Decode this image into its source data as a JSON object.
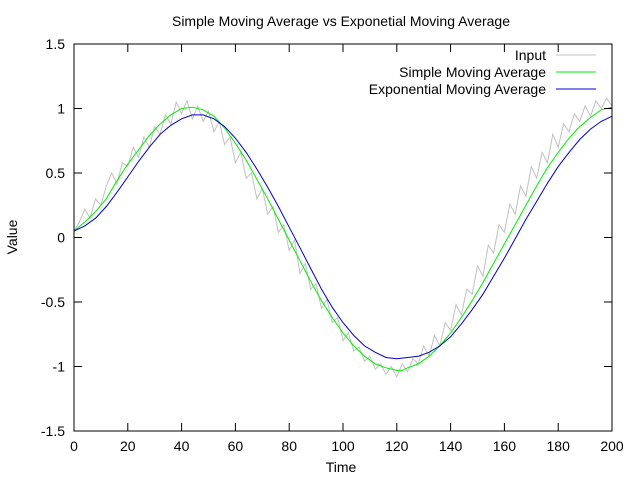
{
  "chart_data": {
    "type": "line",
    "title": "Simple Moving Average vs Exponetial Moving Average",
    "xlabel": "Time",
    "ylabel": "Value",
    "xlim": [
      0,
      200
    ],
    "ylim": [
      -1.5,
      1.5
    ],
    "xticks": [
      0,
      20,
      40,
      60,
      80,
      100,
      120,
      140,
      160,
      180,
      200
    ],
    "yticks": [
      -1.5,
      -1,
      -0.5,
      0,
      0.5,
      1,
      1.5
    ],
    "xtick_labels": [
      "0",
      "20",
      "40",
      "60",
      "80",
      "100",
      "120",
      "140",
      "160",
      "180",
      "200"
    ],
    "ytick_labels": [
      "-1.5",
      "-1",
      "-0.5",
      "0",
      "0.5",
      "1",
      "1.5"
    ],
    "grid": false,
    "legend_position": "top-right",
    "series": [
      {
        "name": "Input",
        "color": "#c0c0c0",
        "x": [
          0,
          2,
          4,
          6,
          8,
          10,
          12,
          14,
          16,
          18,
          20,
          22,
          24,
          26,
          28,
          30,
          32,
          34,
          36,
          38,
          40,
          42,
          44,
          46,
          48,
          50,
          52,
          54,
          56,
          58,
          60,
          62,
          64,
          66,
          68,
          70,
          72,
          74,
          76,
          78,
          80,
          82,
          84,
          86,
          88,
          90,
          92,
          94,
          96,
          98,
          100,
          102,
          104,
          106,
          108,
          110,
          112,
          114,
          116,
          118,
          120,
          122,
          124,
          126,
          128,
          130,
          132,
          134,
          136,
          138,
          140,
          142,
          144,
          146,
          148,
          150,
          152,
          154,
          156,
          158,
          160,
          162,
          164,
          166,
          168,
          170,
          172,
          174,
          176,
          178,
          180,
          182,
          184,
          186,
          188,
          190,
          192,
          194,
          196,
          198,
          200
        ],
        "y": [
          0.05,
          0.12,
          0.22,
          0.15,
          0.3,
          0.25,
          0.4,
          0.5,
          0.42,
          0.58,
          0.55,
          0.7,
          0.62,
          0.78,
          0.7,
          0.86,
          0.8,
          0.95,
          0.88,
          1.05,
          0.96,
          1.06,
          0.92,
          1.02,
          0.9,
          0.98,
          0.82,
          0.9,
          0.72,
          0.78,
          0.58,
          0.66,
          0.46,
          0.5,
          0.3,
          0.38,
          0.18,
          0.24,
          0.04,
          0.1,
          -0.1,
          -0.02,
          -0.28,
          -0.2,
          -0.4,
          -0.36,
          -0.55,
          -0.48,
          -0.66,
          -0.62,
          -0.8,
          -0.74,
          -0.88,
          -0.85,
          -0.96,
          -0.92,
          -1.02,
          -0.98,
          -1.06,
          -1.0,
          -1.08,
          -0.98,
          -1.04,
          -0.94,
          -0.98,
          -0.84,
          -0.92,
          -0.76,
          -0.84,
          -0.66,
          -0.72,
          -0.52,
          -0.6,
          -0.4,
          -0.44,
          -0.22,
          -0.3,
          -0.06,
          -0.12,
          0.1,
          0.04,
          0.26,
          0.18,
          0.4,
          0.32,
          0.55,
          0.46,
          0.66,
          0.58,
          0.8,
          0.7,
          0.88,
          0.82,
          0.96,
          0.9,
          1.02,
          0.94,
          1.06,
          1.0,
          1.08,
          1.02
        ]
      },
      {
        "name": "Simple Moving Average",
        "color": "#00ee00",
        "x": [
          0,
          4,
          8,
          12,
          16,
          20,
          24,
          28,
          32,
          36,
          40,
          44,
          48,
          52,
          56,
          60,
          64,
          68,
          72,
          76,
          80,
          84,
          88,
          92,
          96,
          100,
          104,
          108,
          112,
          116,
          120,
          122,
          124,
          128,
          132,
          136,
          140,
          144,
          148,
          152,
          156,
          160,
          164,
          168,
          172,
          176,
          180,
          184,
          188,
          192,
          196,
          200
        ],
        "y": [
          0.05,
          0.12,
          0.2,
          0.3,
          0.44,
          0.57,
          0.68,
          0.79,
          0.88,
          0.95,
          1.0,
          1.01,
          0.99,
          0.94,
          0.85,
          0.73,
          0.6,
          0.45,
          0.3,
          0.14,
          -0.02,
          -0.18,
          -0.34,
          -0.49,
          -0.62,
          -0.74,
          -0.84,
          -0.92,
          -0.98,
          -1.01,
          -1.03,
          -1.03,
          -1.01,
          -0.98,
          -0.92,
          -0.84,
          -0.74,
          -0.62,
          -0.49,
          -0.35,
          -0.2,
          -0.05,
          0.1,
          0.25,
          0.4,
          0.54,
          0.66,
          0.77,
          0.86,
          0.93,
          0.99,
          1.01
        ]
      },
      {
        "name": "Exponential Moving Average",
        "color": "#0000cc",
        "x": [
          0,
          4,
          8,
          12,
          16,
          20,
          24,
          28,
          32,
          36,
          40,
          44,
          48,
          52,
          56,
          60,
          64,
          68,
          72,
          76,
          80,
          84,
          88,
          92,
          96,
          100,
          104,
          108,
          112,
          116,
          120,
          124,
          128,
          132,
          136,
          140,
          144,
          148,
          152,
          156,
          160,
          164,
          168,
          172,
          176,
          180,
          184,
          188,
          192,
          196,
          200
        ],
        "y": [
          0.05,
          0.09,
          0.15,
          0.24,
          0.35,
          0.47,
          0.59,
          0.7,
          0.8,
          0.87,
          0.92,
          0.95,
          0.95,
          0.92,
          0.86,
          0.77,
          0.66,
          0.53,
          0.39,
          0.24,
          0.08,
          -0.08,
          -0.24,
          -0.4,
          -0.54,
          -0.66,
          -0.76,
          -0.84,
          -0.89,
          -0.93,
          -0.94,
          -0.93,
          -0.92,
          -0.89,
          -0.84,
          -0.77,
          -0.67,
          -0.56,
          -0.44,
          -0.3,
          -0.16,
          -0.01,
          0.14,
          0.28,
          0.42,
          0.55,
          0.66,
          0.76,
          0.84,
          0.9,
          0.94
        ]
      }
    ]
  }
}
